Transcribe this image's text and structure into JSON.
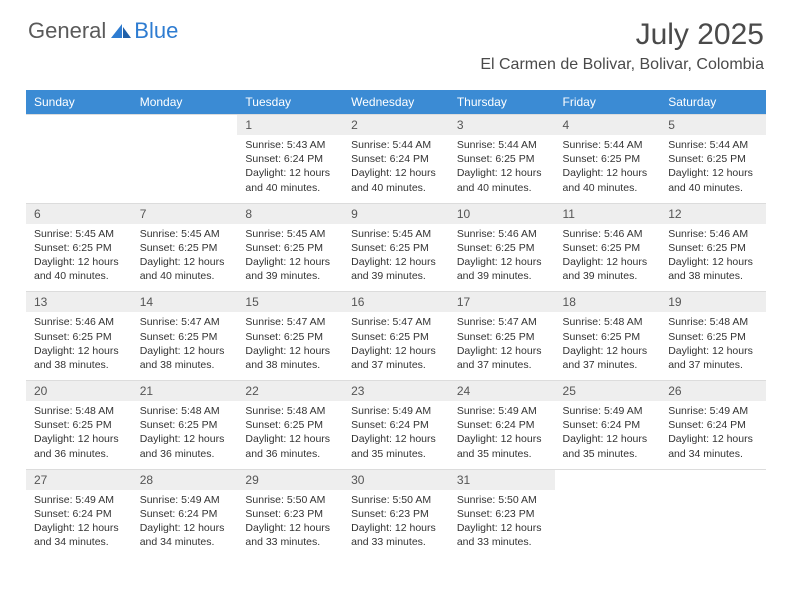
{
  "brand": {
    "general": "General",
    "blue": "Blue"
  },
  "title": "July 2025",
  "location": "El Carmen de Bolivar, Bolivar, Colombia",
  "colors": {
    "header_bg": "#3b8bd4",
    "header_text": "#ffffff",
    "daynum_bg": "#eeeeee",
    "text": "#333333",
    "brand_gray": "#5a5a5a",
    "brand_blue": "#2e7cd1"
  },
  "day_names": [
    "Sunday",
    "Monday",
    "Tuesday",
    "Wednesday",
    "Thursday",
    "Friday",
    "Saturday"
  ],
  "weeks": [
    {
      "nums": [
        "",
        "",
        "1",
        "2",
        "3",
        "4",
        "5"
      ],
      "cells": [
        null,
        null,
        {
          "sr": "Sunrise: 5:43 AM",
          "ss": "Sunset: 6:24 PM",
          "dl": "Daylight: 12 hours and 40 minutes."
        },
        {
          "sr": "Sunrise: 5:44 AM",
          "ss": "Sunset: 6:24 PM",
          "dl": "Daylight: 12 hours and 40 minutes."
        },
        {
          "sr": "Sunrise: 5:44 AM",
          "ss": "Sunset: 6:25 PM",
          "dl": "Daylight: 12 hours and 40 minutes."
        },
        {
          "sr": "Sunrise: 5:44 AM",
          "ss": "Sunset: 6:25 PM",
          "dl": "Daylight: 12 hours and 40 minutes."
        },
        {
          "sr": "Sunrise: 5:44 AM",
          "ss": "Sunset: 6:25 PM",
          "dl": "Daylight: 12 hours and 40 minutes."
        }
      ]
    },
    {
      "nums": [
        "6",
        "7",
        "8",
        "9",
        "10",
        "11",
        "12"
      ],
      "cells": [
        {
          "sr": "Sunrise: 5:45 AM",
          "ss": "Sunset: 6:25 PM",
          "dl": "Daylight: 12 hours and 40 minutes."
        },
        {
          "sr": "Sunrise: 5:45 AM",
          "ss": "Sunset: 6:25 PM",
          "dl": "Daylight: 12 hours and 40 minutes."
        },
        {
          "sr": "Sunrise: 5:45 AM",
          "ss": "Sunset: 6:25 PM",
          "dl": "Daylight: 12 hours and 39 minutes."
        },
        {
          "sr": "Sunrise: 5:45 AM",
          "ss": "Sunset: 6:25 PM",
          "dl": "Daylight: 12 hours and 39 minutes."
        },
        {
          "sr": "Sunrise: 5:46 AM",
          "ss": "Sunset: 6:25 PM",
          "dl": "Daylight: 12 hours and 39 minutes."
        },
        {
          "sr": "Sunrise: 5:46 AM",
          "ss": "Sunset: 6:25 PM",
          "dl": "Daylight: 12 hours and 39 minutes."
        },
        {
          "sr": "Sunrise: 5:46 AM",
          "ss": "Sunset: 6:25 PM",
          "dl": "Daylight: 12 hours and 38 minutes."
        }
      ]
    },
    {
      "nums": [
        "13",
        "14",
        "15",
        "16",
        "17",
        "18",
        "19"
      ],
      "cells": [
        {
          "sr": "Sunrise: 5:46 AM",
          "ss": "Sunset: 6:25 PM",
          "dl": "Daylight: 12 hours and 38 minutes."
        },
        {
          "sr": "Sunrise: 5:47 AM",
          "ss": "Sunset: 6:25 PM",
          "dl": "Daylight: 12 hours and 38 minutes."
        },
        {
          "sr": "Sunrise: 5:47 AM",
          "ss": "Sunset: 6:25 PM",
          "dl": "Daylight: 12 hours and 38 minutes."
        },
        {
          "sr": "Sunrise: 5:47 AM",
          "ss": "Sunset: 6:25 PM",
          "dl": "Daylight: 12 hours and 37 minutes."
        },
        {
          "sr": "Sunrise: 5:47 AM",
          "ss": "Sunset: 6:25 PM",
          "dl": "Daylight: 12 hours and 37 minutes."
        },
        {
          "sr": "Sunrise: 5:48 AM",
          "ss": "Sunset: 6:25 PM",
          "dl": "Daylight: 12 hours and 37 minutes."
        },
        {
          "sr": "Sunrise: 5:48 AM",
          "ss": "Sunset: 6:25 PM",
          "dl": "Daylight: 12 hours and 37 minutes."
        }
      ]
    },
    {
      "nums": [
        "20",
        "21",
        "22",
        "23",
        "24",
        "25",
        "26"
      ],
      "cells": [
        {
          "sr": "Sunrise: 5:48 AM",
          "ss": "Sunset: 6:25 PM",
          "dl": "Daylight: 12 hours and 36 minutes."
        },
        {
          "sr": "Sunrise: 5:48 AM",
          "ss": "Sunset: 6:25 PM",
          "dl": "Daylight: 12 hours and 36 minutes."
        },
        {
          "sr": "Sunrise: 5:48 AM",
          "ss": "Sunset: 6:25 PM",
          "dl": "Daylight: 12 hours and 36 minutes."
        },
        {
          "sr": "Sunrise: 5:49 AM",
          "ss": "Sunset: 6:24 PM",
          "dl": "Daylight: 12 hours and 35 minutes."
        },
        {
          "sr": "Sunrise: 5:49 AM",
          "ss": "Sunset: 6:24 PM",
          "dl": "Daylight: 12 hours and 35 minutes."
        },
        {
          "sr": "Sunrise: 5:49 AM",
          "ss": "Sunset: 6:24 PM",
          "dl": "Daylight: 12 hours and 35 minutes."
        },
        {
          "sr": "Sunrise: 5:49 AM",
          "ss": "Sunset: 6:24 PM",
          "dl": "Daylight: 12 hours and 34 minutes."
        }
      ]
    },
    {
      "nums": [
        "27",
        "28",
        "29",
        "30",
        "31",
        "",
        ""
      ],
      "cells": [
        {
          "sr": "Sunrise: 5:49 AM",
          "ss": "Sunset: 6:24 PM",
          "dl": "Daylight: 12 hours and 34 minutes."
        },
        {
          "sr": "Sunrise: 5:49 AM",
          "ss": "Sunset: 6:24 PM",
          "dl": "Daylight: 12 hours and 34 minutes."
        },
        {
          "sr": "Sunrise: 5:50 AM",
          "ss": "Sunset: 6:23 PM",
          "dl": "Daylight: 12 hours and 33 minutes."
        },
        {
          "sr": "Sunrise: 5:50 AM",
          "ss": "Sunset: 6:23 PM",
          "dl": "Daylight: 12 hours and 33 minutes."
        },
        {
          "sr": "Sunrise: 5:50 AM",
          "ss": "Sunset: 6:23 PM",
          "dl": "Daylight: 12 hours and 33 minutes."
        },
        null,
        null
      ]
    }
  ]
}
